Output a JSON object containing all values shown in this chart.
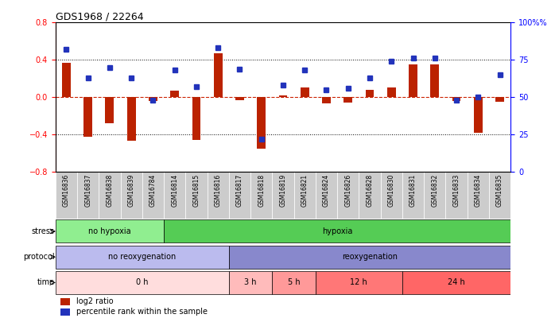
{
  "title": "GDS1968 / 22264",
  "samples": [
    "GSM16836",
    "GSM16837",
    "GSM16838",
    "GSM16839",
    "GSM16784",
    "GSM16814",
    "GSM16815",
    "GSM16816",
    "GSM16817",
    "GSM16818",
    "GSM16819",
    "GSM16821",
    "GSM16824",
    "GSM16826",
    "GSM16828",
    "GSM16830",
    "GSM16831",
    "GSM16832",
    "GSM16833",
    "GSM16834",
    "GSM16835"
  ],
  "log2_ratio": [
    0.37,
    -0.42,
    -0.28,
    -0.47,
    -0.04,
    0.07,
    -0.46,
    0.47,
    -0.03,
    -0.55,
    0.02,
    0.1,
    -0.07,
    -0.06,
    0.08,
    0.1,
    0.35,
    0.35,
    -0.04,
    -0.38,
    -0.05
  ],
  "percentile_rank": [
    82,
    63,
    70,
    63,
    48,
    68,
    57,
    83,
    69,
    22,
    58,
    68,
    55,
    56,
    63,
    74,
    76,
    76,
    48,
    50,
    65
  ],
  "ylim_left": [
    -0.8,
    0.8
  ],
  "ylim_right": [
    0,
    100
  ],
  "yticks_left": [
    -0.8,
    -0.4,
    0.0,
    0.4,
    0.8
  ],
  "yticks_right": [
    0,
    25,
    50,
    75,
    100
  ],
  "stress_groups": [
    {
      "label": "no hypoxia",
      "samples": [
        "GSM16836",
        "GSM16837",
        "GSM16838",
        "GSM16839",
        "GSM16784"
      ],
      "color": "#90EE90"
    },
    {
      "label": "hypoxia",
      "samples": [
        "GSM16814",
        "GSM16815",
        "GSM16816",
        "GSM16817",
        "GSM16818",
        "GSM16819",
        "GSM16821",
        "GSM16824",
        "GSM16826",
        "GSM16828",
        "GSM16830",
        "GSM16831",
        "GSM16832",
        "GSM16833",
        "GSM16834",
        "GSM16835"
      ],
      "color": "#55CC55"
    }
  ],
  "protocol_groups": [
    {
      "label": "no reoxygenation",
      "samples": [
        "GSM16836",
        "GSM16837",
        "GSM16838",
        "GSM16839",
        "GSM16784",
        "GSM16814",
        "GSM16815",
        "GSM16816"
      ],
      "color": "#BBBBEE"
    },
    {
      "label": "reoxygenation",
      "samples": [
        "GSM16817",
        "GSM16818",
        "GSM16819",
        "GSM16821",
        "GSM16824",
        "GSM16826",
        "GSM16828",
        "GSM16830",
        "GSM16831",
        "GSM16832",
        "GSM16833",
        "GSM16834",
        "GSM16835"
      ],
      "color": "#8888CC"
    }
  ],
  "time_groups": [
    {
      "label": "0 h",
      "samples": [
        "GSM16836",
        "GSM16837",
        "GSM16838",
        "GSM16839",
        "GSM16784",
        "GSM16814",
        "GSM16815",
        "GSM16816"
      ],
      "color": "#FFDDDD"
    },
    {
      "label": "3 h",
      "samples": [
        "GSM16817",
        "GSM16818"
      ],
      "color": "#FFBBBB"
    },
    {
      "label": "5 h",
      "samples": [
        "GSM16819",
        "GSM16821"
      ],
      "color": "#FF9999"
    },
    {
      "label": "12 h",
      "samples": [
        "GSM16824",
        "GSM16826",
        "GSM16828",
        "GSM16830"
      ],
      "color": "#FF7777"
    },
    {
      "label": "24 h",
      "samples": [
        "GSM16831",
        "GSM16832",
        "GSM16833",
        "GSM16834",
        "GSM16835"
      ],
      "color": "#FF6666"
    }
  ],
  "bar_color": "#BB2200",
  "dot_color": "#2233BB",
  "zero_line_color": "#CC2200",
  "background_color": "#FFFFFF",
  "xticklabel_bg": "#CCCCCC",
  "legend_items": [
    {
      "label": "log2 ratio",
      "color": "#BB2200"
    },
    {
      "label": "percentile rank within the sample",
      "color": "#2233BB"
    }
  ]
}
